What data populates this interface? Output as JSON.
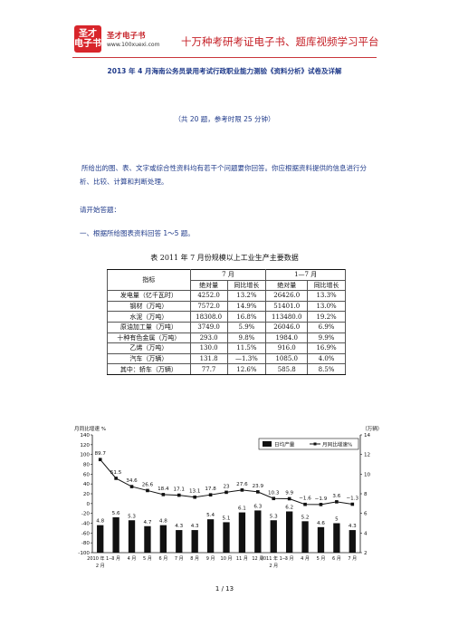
{
  "header": {
    "logo_text_top": "圣才",
    "logo_text_bottom": "电子书",
    "brand_name": "圣才电子书",
    "brand_url": "www.100xuexi.com",
    "platform_slogan": "十万种考研考证电子书、题库视频学习平台"
  },
  "doc": {
    "title": "2013 年 4 月海南公务员录用考试行政职业能力测验《资料分析》试卷及详解",
    "subtitle": "（共 20 题，参考时限 25 分钟）",
    "intro": "所给出的图、表、文字或综合性资料均有若干个问题要你回答。你应根据资料提供的信息进行分析、比较、计算和判断处理。",
    "start": "请开始答题：",
    "section1": "一、根据所给图表资料回答 1～5 题。",
    "table_caption": "表   2011 年 7 月份规模以上工业生产主要数据",
    "page_number": "1 / 13"
  },
  "table": {
    "head_indicator": "指标",
    "group_july": "7 月",
    "group_jan_jul": "1—7 月",
    "col_abs": "绝对量",
    "col_yoy": "同比增长",
    "rows": [
      {
        "name": "发电量（亿千瓦时）",
        "jul": "4252.0",
        "jul_g": "13.2%",
        "cum": "26426.0",
        "cum_g": "13.3%"
      },
      {
        "name": "钢材（万吨）",
        "jul": "7572.0",
        "jul_g": "14.9%",
        "cum": "51401.0",
        "cum_g": "13.0%"
      },
      {
        "name": "水泥（万吨）",
        "jul": "18308.0",
        "jul_g": "16.8%",
        "cum": "113480.0",
        "cum_g": "19.2%"
      },
      {
        "name": "原油加工量（万吨）",
        "jul": "3749.0",
        "jul_g": "5.9%",
        "cum": "26046.0",
        "cum_g": "6.9%"
      },
      {
        "name": "十种有色金属（万吨）",
        "jul": "293.0",
        "jul_g": "9.8%",
        "cum": "1984.0",
        "cum_g": "9.9%"
      },
      {
        "name": "乙烯（万吨）",
        "jul": "130.0",
        "jul_g": "11.5%",
        "cum": "916.0",
        "cum_g": "16.9%"
      },
      {
        "name": "汽车（万辆）",
        "jul": "131.8",
        "jul_g": "—1.3%",
        "cum": "1085.0",
        "cum_g": "4.0%"
      },
      {
        "name": "其中：轿车（万辆）",
        "jul": "77.7",
        "jul_g": "12.6%",
        "cum": "585.8",
        "cum_g": "8.5%"
      }
    ]
  },
  "chart_data": {
    "type": "bar",
    "ylabel_left": "月同比增速 %",
    "ylabel_right": "（万辆）",
    "left_ylim": [
      -100,
      140
    ],
    "left_ticks": [
      -100,
      -80,
      -60,
      -40,
      -20,
      0,
      20,
      40,
      60,
      80,
      100,
      120,
      140
    ],
    "right_ylim": [
      2,
      14
    ],
    "right_ticks": [
      2,
      4,
      6,
      8,
      10,
      12,
      14
    ],
    "categories": [
      "2010 年 1—2 月",
      "3 月",
      "4 月",
      "5 月",
      "6 月",
      "7 月",
      "8 月",
      "9 月",
      "10 月",
      "11 月",
      "12 月",
      "2011 年 1—2 月",
      "3 月",
      "4 月",
      "5 月",
      "6 月",
      "7 月"
    ],
    "category_labels": [
      "2010 年 1—",
      "3 月",
      "4 月",
      "5 月",
      "6 月",
      "7 月",
      "8 月",
      "9 月",
      "10 月",
      "11 月",
      "12 月",
      "2011 年 1—",
      "3 月",
      "4 月",
      "5 月",
      "6 月",
      "7 月"
    ],
    "category_sub_labels": [
      "2 月",
      "",
      "",
      "",
      "",
      "",
      "",
      "",
      "",
      "",
      "",
      "2 月",
      "",
      "",
      "",
      "",
      ""
    ],
    "legend": [
      "日均产量",
      "月同比增速%"
    ],
    "legend_position": "top-right",
    "series": [
      {
        "name": "日均产量",
        "axis": "right",
        "type": "bar",
        "values": [
          4.8,
          5.6,
          5.3,
          4.7,
          4.8,
          4.3,
          4.3,
          5.4,
          5.1,
          6.1,
          6.3,
          5.3,
          6.2,
          5.2,
          4.6,
          5.0,
          4.3
        ],
        "labels": [
          "4.8",
          "5.6",
          "5.3",
          "4.7",
          "4.8",
          "4.3",
          "4.3",
          "5.4",
          "5.1",
          "6.1",
          "6.3",
          "5.3",
          "6.2",
          "5.2",
          "4.6",
          "5",
          "4.3"
        ]
      },
      {
        "name": "月同比增速%",
        "axis": "left",
        "type": "line",
        "values": [
          89.7,
          51.5,
          34.6,
          26.6,
          18.4,
          17.1,
          13.1,
          17.8,
          23.0,
          27.6,
          23.9,
          10.3,
          9.9,
          -1.6,
          -1.9,
          3.6,
          -1.3
        ],
        "labels": [
          "89.7",
          "51.5",
          "34.6",
          "26.6",
          "18.4",
          "17.1",
          "13.1",
          "17.8",
          "23",
          "27.6",
          "23.9",
          "10.3",
          "9.9",
          "−1.6",
          "−1.9",
          "3.6",
          "−1.3"
        ]
      }
    ]
  }
}
